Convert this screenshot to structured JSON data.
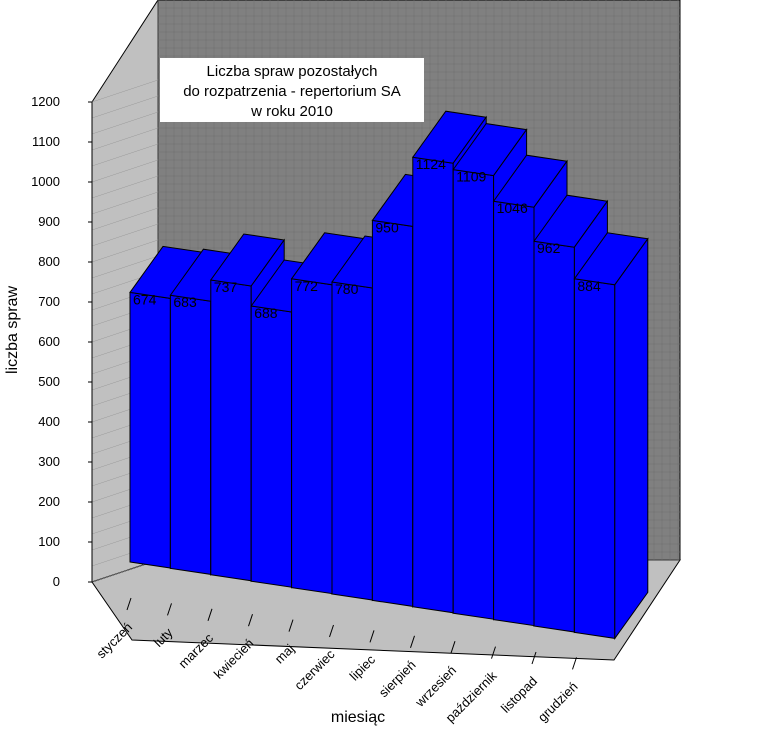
{
  "chart_data": {
    "type": "bar",
    "title_lines": [
      "Liczba spraw pozostałych",
      "do rozpatrzenia - repertorium SA",
      "w roku 2010"
    ],
    "xlabel": "miesiąc",
    "ylabel": "liczba spraw",
    "ylim": [
      0,
      1200
    ],
    "yticks": [
      0,
      100,
      200,
      300,
      400,
      500,
      600,
      700,
      800,
      900,
      1000,
      1100,
      1200
    ],
    "categories": [
      "styczeń",
      "luty",
      "marzec",
      "kwiecień",
      "maj",
      "czerwiec",
      "lipiec",
      "sierpień",
      "wrzesień",
      "październik",
      "listopad",
      "grudzień"
    ],
    "series": [
      {
        "values": [
          674,
          683,
          737,
          688,
          772,
          780,
          950,
          1124,
          1109,
          1046,
          962,
          884
        ]
      }
    ],
    "bar_color": "#0000ff",
    "back_wall_color": "#808080",
    "floor_color": "#c0c0c0",
    "grid": true
  }
}
